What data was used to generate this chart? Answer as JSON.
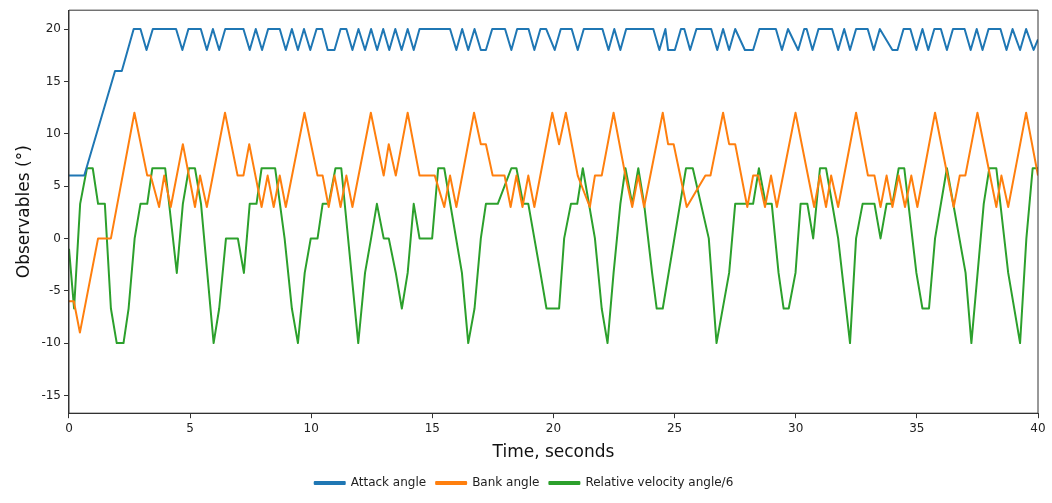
{
  "chart_data": {
    "type": "line",
    "xlabel": "Time, seconds",
    "ylabel": "Observables (°)",
    "xlim": [
      0,
      40
    ],
    "xticks": [
      0,
      5,
      10,
      15,
      20,
      25,
      30,
      35,
      40
    ],
    "ylim": [
      -16.7,
      21.8
    ],
    "yticks": [
      -15,
      -10,
      -5,
      0,
      5,
      10,
      15,
      20
    ],
    "grid": false,
    "legend": "bottom",
    "marker": "none",
    "line_style": "solid",
    "series": [
      {
        "name": "Attack angle",
        "color": "#1f77b4",
        "x": [
          0,
          0.63,
          1.9,
          2.18,
          2.67,
          2.95,
          3.2,
          3.46,
          4.42,
          4.68,
          4.93,
          5.44,
          5.69,
          5.94,
          6.2,
          6.45,
          7.2,
          7.46,
          7.71,
          7.97,
          8.22,
          8.7,
          8.95,
          9.2,
          9.45,
          9.7,
          9.96,
          10.22,
          10.45,
          10.68,
          10.96,
          11.21,
          11.45,
          11.7,
          11.95,
          12.22,
          12.47,
          12.72,
          12.97,
          13.22,
          13.47,
          13.73,
          13.98,
          14.23,
          14.47,
          15.73,
          15.99,
          16.23,
          16.48,
          16.74,
          17.0,
          17.21,
          17.47,
          18.0,
          18.26,
          18.5,
          18.97,
          19.21,
          19.46,
          19.7,
          20.05,
          20.3,
          20.75,
          21.0,
          21.25,
          22.02,
          22.27,
          22.51,
          22.76,
          23.0,
          24.12,
          24.37,
          24.62,
          24.73,
          25.01,
          25.26,
          25.4,
          25.64,
          25.9,
          26.51,
          26.76,
          27.0,
          27.25,
          27.5,
          27.9,
          28.24,
          28.5,
          29.18,
          29.43,
          29.68,
          30.1,
          30.35,
          30.45,
          30.69,
          30.94,
          31.5,
          31.75,
          32.0,
          32.24,
          32.49,
          32.97,
          33.22,
          33.47,
          33.99,
          34.2,
          34.45,
          34.73,
          34.98,
          35.23,
          35.47,
          35.72,
          35.99,
          36.24,
          36.49,
          36.97,
          37.22,
          37.47,
          37.71,
          37.96,
          38.45,
          38.7,
          38.95,
          39.26,
          39.51,
          39.82,
          40
        ],
        "values": [
          6,
          6,
          16,
          16,
          20,
          20,
          18,
          20,
          20,
          18,
          20,
          20,
          18,
          20,
          18,
          20,
          20,
          18,
          20,
          18,
          20,
          20,
          18,
          20,
          18,
          20,
          18,
          20,
          20,
          18,
          18,
          20,
          20,
          18,
          20,
          18,
          20,
          18,
          20,
          18,
          20,
          18,
          20,
          18,
          20,
          20,
          18,
          20,
          18,
          20,
          18,
          18,
          20,
          20,
          18,
          20,
          20,
          18,
          20,
          20,
          18,
          20,
          20,
          18,
          20,
          20,
          18,
          20,
          18,
          20,
          20,
          18,
          20,
          18,
          18,
          20,
          20,
          18,
          20,
          20,
          18,
          20,
          18,
          20,
          18,
          18,
          20,
          20,
          18,
          20,
          18,
          20,
          20,
          18,
          20,
          20,
          18,
          20,
          18,
          20,
          20,
          18,
          20,
          18,
          18,
          20,
          20,
          18,
          20,
          18,
          20,
          20,
          18,
          20,
          20,
          18,
          20,
          18,
          20,
          20,
          18,
          20,
          18,
          20,
          18,
          19
        ]
      },
      {
        "name": "Bank angle",
        "color": "#ff7f0e",
        "x": [
          0,
          0.2,
          0.45,
          1.2,
          1.73,
          2.7,
          3.23,
          3.37,
          3.72,
          3.93,
          4.2,
          4.7,
          5.2,
          5.41,
          5.69,
          6.44,
          6.96,
          7.2,
          7.44,
          7.95,
          8.2,
          8.45,
          8.7,
          8.95,
          9.72,
          10.26,
          10.47,
          10.72,
          10.96,
          11.21,
          11.45,
          11.7,
          12.46,
          12.99,
          13.2,
          13.49,
          13.98,
          14.47,
          15.1,
          15.49,
          15.73,
          15.99,
          16.72,
          17.0,
          17.21,
          17.49,
          17.98,
          18.23,
          18.47,
          18.72,
          18.96,
          19.21,
          19.95,
          20.23,
          20.51,
          21.0,
          21.5,
          21.71,
          21.99,
          22.48,
          22.97,
          23.25,
          23.5,
          23.74,
          24.51,
          24.73,
          24.96,
          25.5,
          26.27,
          26.48,
          27.0,
          27.25,
          27.5,
          28.0,
          28.24,
          28.45,
          28.73,
          28.98,
          29.22,
          29.99,
          30.76,
          31.0,
          31.25,
          31.46,
          31.75,
          32.49,
          32.98,
          33.25,
          33.5,
          33.75,
          33.99,
          34.25,
          34.51,
          34.77,
          35.02,
          35.75,
          36.52,
          36.77,
          37.0,
          37.5,
          38.28,
          38.49,
          38.77,
          39.51,
          40
        ],
        "values": [
          -6,
          -6,
          -9,
          0,
          0,
          12,
          6,
          6,
          3,
          6,
          3,
          9,
          3,
          6,
          3,
          12,
          6,
          6,
          9,
          3,
          6,
          3,
          6,
          3,
          12,
          6,
          6,
          3,
          6,
          3,
          6,
          3,
          12,
          6,
          9,
          6,
          12,
          6,
          6,
          3,
          6,
          3,
          12,
          9,
          9,
          6,
          6,
          3,
          6,
          3,
          6,
          3,
          12,
          9,
          12,
          6,
          3,
          6,
          6,
          12,
          6,
          3,
          6,
          3,
          12,
          9,
          9,
          3,
          6,
          6,
          12,
          9,
          9,
          3,
          6,
          6,
          3,
          6,
          3,
          12,
          3,
          6,
          3,
          6,
          3,
          12,
          6,
          6,
          3,
          6,
          3,
          6,
          3,
          6,
          3,
          12,
          3,
          6,
          6,
          12,
          3,
          6,
          3,
          12,
          6
        ]
      },
      {
        "name": "Relative velocity angle/6",
        "color": "#2ca02c",
        "x": [
          0,
          0.21,
          0.46,
          0.74,
          0.98,
          1.2,
          1.48,
          1.73,
          1.97,
          2.25,
          2.46,
          2.71,
          2.95,
          3.23,
          3.44,
          3.97,
          4.45,
          4.7,
          4.95,
          5.2,
          5.45,
          5.97,
          6.2,
          6.48,
          6.97,
          7.22,
          7.46,
          7.74,
          7.95,
          8.51,
          8.9,
          9.2,
          9.45,
          9.73,
          9.98,
          10.26,
          10.47,
          10.72,
          11.0,
          11.24,
          11.94,
          12.22,
          12.47,
          12.71,
          12.99,
          13.2,
          13.49,
          13.74,
          13.98,
          14.23,
          14.47,
          14.99,
          15.24,
          15.49,
          16.22,
          16.48,
          16.74,
          17.0,
          17.21,
          17.7,
          18.26,
          18.47,
          18.75,
          18.96,
          19.46,
          19.71,
          20.23,
          20.44,
          20.72,
          20.98,
          21.21,
          21.71,
          21.99,
          22.23,
          22.48,
          22.76,
          22.97,
          23.25,
          23.5,
          23.74,
          24.07,
          24.26,
          24.51,
          24.99,
          25.47,
          25.75,
          26.41,
          26.73,
          27.25,
          27.5,
          28.24,
          28.48,
          28.76,
          29.01,
          29.29,
          29.5,
          29.71,
          29.99,
          30.2,
          30.48,
          30.72,
          31.0,
          31.25,
          31.75,
          32.24,
          32.49,
          32.76,
          33.25,
          33.5,
          33.75,
          33.99,
          34.25,
          34.48,
          34.98,
          35.23,
          35.5,
          35.75,
          36.24,
          37.01,
          37.25,
          37.76,
          37.99,
          38.28,
          38.77,
          39.26,
          39.52,
          39.78,
          40
        ],
        "values": [
          -1,
          -6.7,
          3.3,
          6.7,
          6.7,
          3.3,
          3.3,
          -6.7,
          -10,
          -10,
          -6.7,
          0,
          3.3,
          3.3,
          6.7,
          6.7,
          -3.3,
          3.3,
          6.7,
          6.7,
          3.3,
          -10,
          -6.7,
          0,
          0,
          -3.3,
          3.3,
          3.3,
          6.7,
          6.7,
          0,
          -6.7,
          -10,
          -3.3,
          0,
          0,
          3.3,
          3.3,
          6.7,
          6.7,
          -10,
          -3.3,
          0,
          3.3,
          0,
          0,
          -3.3,
          -6.7,
          -3.3,
          3.3,
          0,
          0,
          6.7,
          6.7,
          -3.3,
          -10,
          -6.7,
          0,
          3.3,
          3.3,
          6.7,
          6.7,
          3.3,
          3.3,
          -3.3,
          -6.7,
          -6.7,
          0,
          3.3,
          3.3,
          6.7,
          0,
          -6.7,
          -10,
          -3.3,
          3.3,
          6.7,
          3.3,
          6.7,
          3.3,
          -3.3,
          -6.7,
          -6.7,
          0,
          6.7,
          6.7,
          0,
          -10,
          -3.3,
          3.3,
          3.3,
          6.7,
          3.3,
          3.3,
          -3.3,
          -6.7,
          -6.7,
          -3.3,
          3.3,
          3.3,
          0,
          6.7,
          6.7,
          0,
          -10,
          0,
          3.3,
          3.3,
          0,
          3.3,
          3.3,
          6.7,
          6.7,
          -3.3,
          -6.7,
          -6.7,
          0,
          6.7,
          -3.3,
          -10,
          3.3,
          6.7,
          6.7,
          -3.3,
          -10,
          0,
          6.7,
          6.7
        ]
      }
    ]
  }
}
